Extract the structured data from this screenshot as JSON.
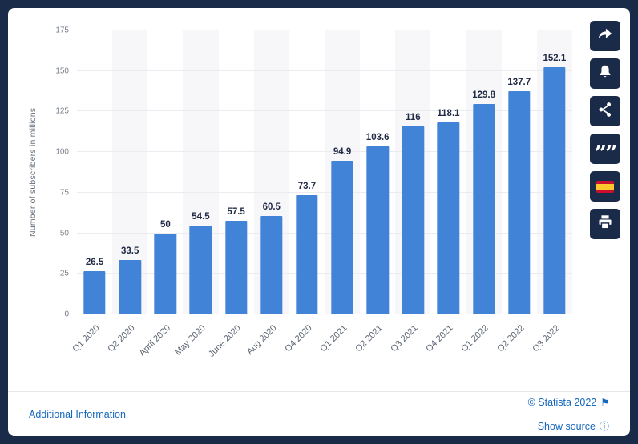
{
  "chart_data": {
    "type": "bar",
    "title": "",
    "xlabel": "",
    "ylabel": "Number of subscribers in millions",
    "ylim": [
      0,
      175
    ],
    "yticks": [
      0,
      25,
      50,
      75,
      100,
      125,
      150,
      175
    ],
    "grid": true,
    "legend": false,
    "bar_color": "#4183d7",
    "categories": [
      "Q1 2020",
      "Q2 2020",
      "April 2020",
      "May 2020",
      "June 2020",
      "Aug 2020",
      "Q4 2020",
      "Q1 2021",
      "Q2 2021",
      "Q3 2021",
      "Q4 2021",
      "Q1 2022",
      "Q2 2022",
      "Q3 2022"
    ],
    "values": [
      26.5,
      33.5,
      50,
      54.5,
      57.5,
      60.5,
      73.7,
      94.9,
      103.6,
      116,
      118.1,
      129.8,
      137.7,
      152.1
    ],
    "value_labels": [
      "26.5",
      "33.5",
      "50",
      "54.5",
      "57.5",
      "60.5",
      "73.7",
      "94.9",
      "103.6",
      "116",
      "118.1",
      "129.8",
      "137.7",
      "152.1"
    ]
  },
  "sidebar": {
    "icons": [
      {
        "name": "share-icon"
      },
      {
        "name": "alert-bell-icon"
      },
      {
        "name": "share-nodes-icon"
      },
      {
        "name": "quote-icon"
      },
      {
        "name": "flag-spain-icon"
      },
      {
        "name": "print-icon"
      }
    ],
    "quote_glyph": "””"
  },
  "footer": {
    "additional_info_label": "Additional Information",
    "copyright_label": "© Statista 2022",
    "show_source_label": "Show source",
    "copyright_icon_glyph": "⚑",
    "source_info_glyph": "ⓘ"
  },
  "colors": {
    "frame": "#1a2b49",
    "bar": "#4183d7",
    "link": "#1567bd",
    "column_shade": "#f7f7fa",
    "value_label": "#222b45"
  }
}
